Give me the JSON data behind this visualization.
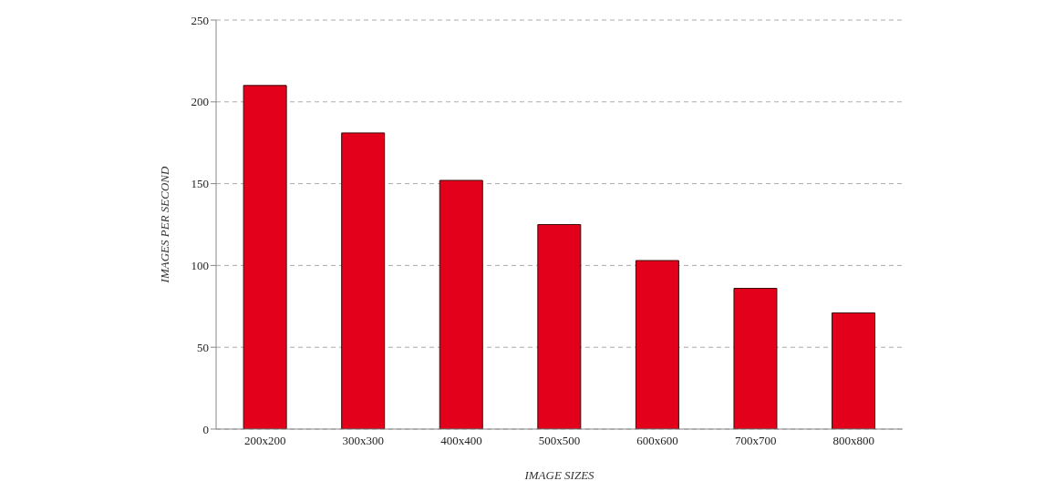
{
  "chart_data": {
    "type": "bar",
    "xlabel": "IMAGE SIZES",
    "ylabel": "IMAGES PER SECOND",
    "categories": [
      "200x200",
      "300x300",
      "400x400",
      "500x500",
      "600x600",
      "700x700",
      "800x800"
    ],
    "values": [
      210,
      181,
      152,
      125,
      103,
      86,
      71
    ],
    "color": "#e2001a",
    "ylim": [
      0,
      250
    ],
    "yticks": [
      0,
      50,
      100,
      150,
      200,
      250
    ],
    "grid": "y"
  }
}
